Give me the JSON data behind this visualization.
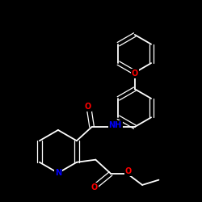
{
  "background_color": "#000000",
  "bond_color": "#ffffff",
  "atom_colors": {
    "O": "#ff0000",
    "N": "#0000ff"
  },
  "figsize": [
    2.5,
    2.5
  ],
  "dpi": 100,
  "scale": 1.0
}
